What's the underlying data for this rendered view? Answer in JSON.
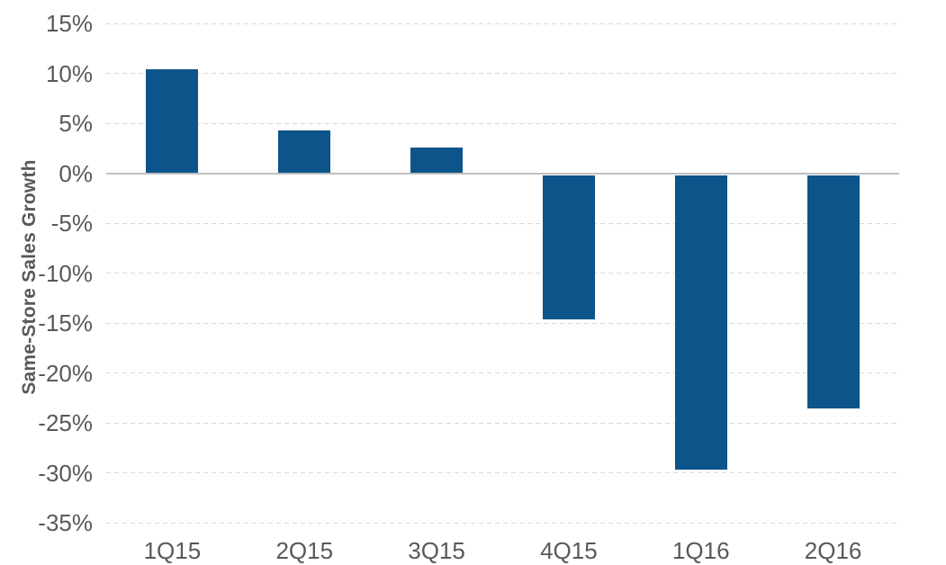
{
  "chart_data": {
    "type": "bar",
    "title": "",
    "categories": [
      "1Q15",
      "2Q15",
      "3Q15",
      "4Q15",
      "1Q16",
      "2Q16"
    ],
    "values": [
      10.4,
      4.3,
      2.6,
      -14.6,
      -29.7,
      -23.6
    ],
    "xlabel": "",
    "ylabel": "Same-Store Sales Growth",
    "ylim": [
      -35,
      15
    ],
    "yticks": [
      15,
      10,
      5,
      0,
      -5,
      -10,
      -15,
      -20,
      -25,
      -30,
      -35
    ],
    "ytick_labels": [
      "15%",
      "10%",
      "5%",
      "0%",
      "-5%",
      "-10%",
      "-15%",
      "-20%",
      "-25%",
      "-30%",
      "-35%"
    ],
    "grid": "horizontal-dashed",
    "zero_line": true,
    "legend": "none",
    "colors": {
      "bar": "#0c5489",
      "grid_line": "#d9d9d9",
      "zero_line": "#bfbfbf",
      "axis_text": "#595959",
      "background": "#ffffff"
    }
  }
}
